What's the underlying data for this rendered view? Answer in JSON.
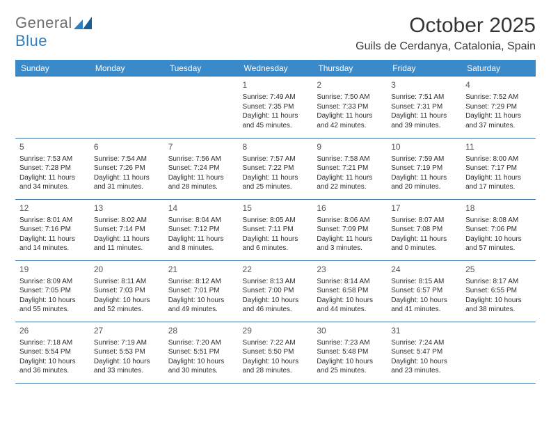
{
  "brand": {
    "part1": "General",
    "part2": "Blue",
    "color_general": "#6a6f73",
    "color_blue": "#2d7fc1",
    "mark_color": "#2d7fc1"
  },
  "title": "October 2025",
  "location": "Guils de Cerdanya, Catalonia, Spain",
  "colors": {
    "header_bg": "#3a89c9",
    "header_text": "#ffffff",
    "row_border": "#3a6ea0",
    "page_bg": "#ffffff",
    "text": "#2c2c2c",
    "daynum": "#555555",
    "title_text": "#343434"
  },
  "fonts": {
    "title_size_pt": 30,
    "location_size_pt": 16,
    "dow_size_pt": 12,
    "cell_size_pt": 10,
    "daynum_size_pt": 12
  },
  "days_of_week": [
    "Sunday",
    "Monday",
    "Tuesday",
    "Wednesday",
    "Thursday",
    "Friday",
    "Saturday"
  ],
  "weeks": [
    [
      null,
      null,
      null,
      {
        "n": "1",
        "sr": "Sunrise: 7:49 AM",
        "ss": "Sunset: 7:35 PM",
        "d1": "Daylight: 11 hours",
        "d2": "and 45 minutes."
      },
      {
        "n": "2",
        "sr": "Sunrise: 7:50 AM",
        "ss": "Sunset: 7:33 PM",
        "d1": "Daylight: 11 hours",
        "d2": "and 42 minutes."
      },
      {
        "n": "3",
        "sr": "Sunrise: 7:51 AM",
        "ss": "Sunset: 7:31 PM",
        "d1": "Daylight: 11 hours",
        "d2": "and 39 minutes."
      },
      {
        "n": "4",
        "sr": "Sunrise: 7:52 AM",
        "ss": "Sunset: 7:29 PM",
        "d1": "Daylight: 11 hours",
        "d2": "and 37 minutes."
      }
    ],
    [
      {
        "n": "5",
        "sr": "Sunrise: 7:53 AM",
        "ss": "Sunset: 7:28 PM",
        "d1": "Daylight: 11 hours",
        "d2": "and 34 minutes."
      },
      {
        "n": "6",
        "sr": "Sunrise: 7:54 AM",
        "ss": "Sunset: 7:26 PM",
        "d1": "Daylight: 11 hours",
        "d2": "and 31 minutes."
      },
      {
        "n": "7",
        "sr": "Sunrise: 7:56 AM",
        "ss": "Sunset: 7:24 PM",
        "d1": "Daylight: 11 hours",
        "d2": "and 28 minutes."
      },
      {
        "n": "8",
        "sr": "Sunrise: 7:57 AM",
        "ss": "Sunset: 7:22 PM",
        "d1": "Daylight: 11 hours",
        "d2": "and 25 minutes."
      },
      {
        "n": "9",
        "sr": "Sunrise: 7:58 AM",
        "ss": "Sunset: 7:21 PM",
        "d1": "Daylight: 11 hours",
        "d2": "and 22 minutes."
      },
      {
        "n": "10",
        "sr": "Sunrise: 7:59 AM",
        "ss": "Sunset: 7:19 PM",
        "d1": "Daylight: 11 hours",
        "d2": "and 20 minutes."
      },
      {
        "n": "11",
        "sr": "Sunrise: 8:00 AM",
        "ss": "Sunset: 7:17 PM",
        "d1": "Daylight: 11 hours",
        "d2": "and 17 minutes."
      }
    ],
    [
      {
        "n": "12",
        "sr": "Sunrise: 8:01 AM",
        "ss": "Sunset: 7:16 PM",
        "d1": "Daylight: 11 hours",
        "d2": "and 14 minutes."
      },
      {
        "n": "13",
        "sr": "Sunrise: 8:02 AM",
        "ss": "Sunset: 7:14 PM",
        "d1": "Daylight: 11 hours",
        "d2": "and 11 minutes."
      },
      {
        "n": "14",
        "sr": "Sunrise: 8:04 AM",
        "ss": "Sunset: 7:12 PM",
        "d1": "Daylight: 11 hours",
        "d2": "and 8 minutes."
      },
      {
        "n": "15",
        "sr": "Sunrise: 8:05 AM",
        "ss": "Sunset: 7:11 PM",
        "d1": "Daylight: 11 hours",
        "d2": "and 6 minutes."
      },
      {
        "n": "16",
        "sr": "Sunrise: 8:06 AM",
        "ss": "Sunset: 7:09 PM",
        "d1": "Daylight: 11 hours",
        "d2": "and 3 minutes."
      },
      {
        "n": "17",
        "sr": "Sunrise: 8:07 AM",
        "ss": "Sunset: 7:08 PM",
        "d1": "Daylight: 11 hours",
        "d2": "and 0 minutes."
      },
      {
        "n": "18",
        "sr": "Sunrise: 8:08 AM",
        "ss": "Sunset: 7:06 PM",
        "d1": "Daylight: 10 hours",
        "d2": "and 57 minutes."
      }
    ],
    [
      {
        "n": "19",
        "sr": "Sunrise: 8:09 AM",
        "ss": "Sunset: 7:05 PM",
        "d1": "Daylight: 10 hours",
        "d2": "and 55 minutes."
      },
      {
        "n": "20",
        "sr": "Sunrise: 8:11 AM",
        "ss": "Sunset: 7:03 PM",
        "d1": "Daylight: 10 hours",
        "d2": "and 52 minutes."
      },
      {
        "n": "21",
        "sr": "Sunrise: 8:12 AM",
        "ss": "Sunset: 7:01 PM",
        "d1": "Daylight: 10 hours",
        "d2": "and 49 minutes."
      },
      {
        "n": "22",
        "sr": "Sunrise: 8:13 AM",
        "ss": "Sunset: 7:00 PM",
        "d1": "Daylight: 10 hours",
        "d2": "and 46 minutes."
      },
      {
        "n": "23",
        "sr": "Sunrise: 8:14 AM",
        "ss": "Sunset: 6:58 PM",
        "d1": "Daylight: 10 hours",
        "d2": "and 44 minutes."
      },
      {
        "n": "24",
        "sr": "Sunrise: 8:15 AM",
        "ss": "Sunset: 6:57 PM",
        "d1": "Daylight: 10 hours",
        "d2": "and 41 minutes."
      },
      {
        "n": "25",
        "sr": "Sunrise: 8:17 AM",
        "ss": "Sunset: 6:55 PM",
        "d1": "Daylight: 10 hours",
        "d2": "and 38 minutes."
      }
    ],
    [
      {
        "n": "26",
        "sr": "Sunrise: 7:18 AM",
        "ss": "Sunset: 5:54 PM",
        "d1": "Daylight: 10 hours",
        "d2": "and 36 minutes."
      },
      {
        "n": "27",
        "sr": "Sunrise: 7:19 AM",
        "ss": "Sunset: 5:53 PM",
        "d1": "Daylight: 10 hours",
        "d2": "and 33 minutes."
      },
      {
        "n": "28",
        "sr": "Sunrise: 7:20 AM",
        "ss": "Sunset: 5:51 PM",
        "d1": "Daylight: 10 hours",
        "d2": "and 30 minutes."
      },
      {
        "n": "29",
        "sr": "Sunrise: 7:22 AM",
        "ss": "Sunset: 5:50 PM",
        "d1": "Daylight: 10 hours",
        "d2": "and 28 minutes."
      },
      {
        "n": "30",
        "sr": "Sunrise: 7:23 AM",
        "ss": "Sunset: 5:48 PM",
        "d1": "Daylight: 10 hours",
        "d2": "and 25 minutes."
      },
      {
        "n": "31",
        "sr": "Sunrise: 7:24 AM",
        "ss": "Sunset: 5:47 PM",
        "d1": "Daylight: 10 hours",
        "d2": "and 23 minutes."
      },
      null
    ]
  ]
}
